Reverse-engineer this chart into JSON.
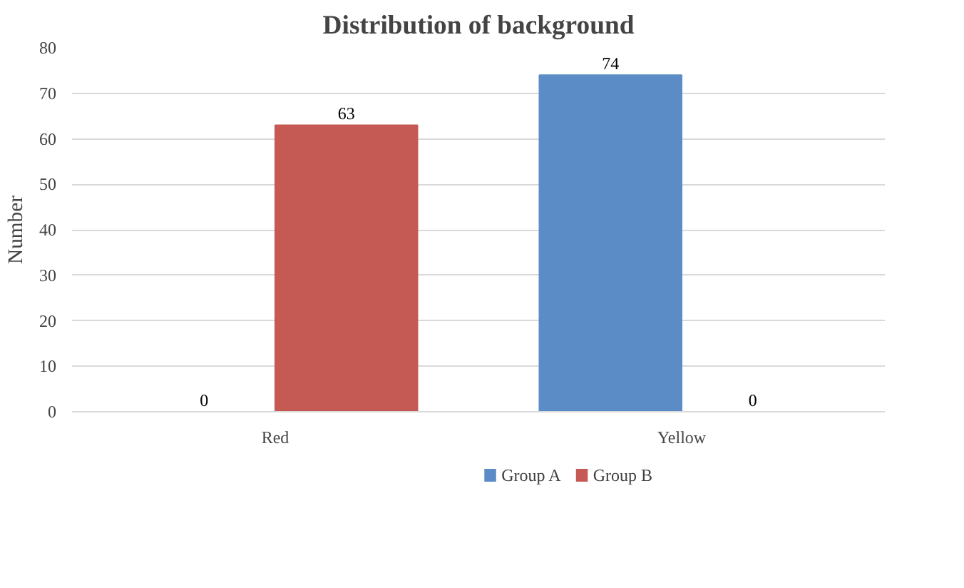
{
  "chart_data": {
    "type": "bar",
    "title": "Distribution of background",
    "ylabel": "Number",
    "categories": [
      "Red",
      "Yellow"
    ],
    "series": [
      {
        "name": "Group A",
        "color": "#5b8cc6",
        "values": [
          0,
          74
        ]
      },
      {
        "name": "Group B",
        "color": "#c55a55",
        "values": [
          63,
          0
        ]
      }
    ],
    "ylim": [
      0,
      80
    ],
    "yticks": [
      0,
      10,
      20,
      30,
      40,
      50,
      60,
      70,
      80
    ],
    "grid": "y",
    "legend": "bottom",
    "data_labels": true
  }
}
